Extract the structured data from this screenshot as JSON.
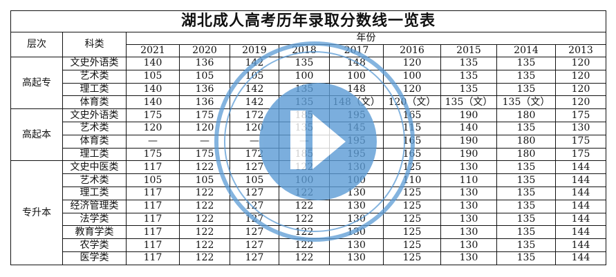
{
  "title": "湖北成人高考历年录取分数线一览表",
  "header": {
    "level": "层次",
    "category": "科类",
    "years_label": "年份"
  },
  "years": [
    "2021",
    "2020",
    "2019",
    "2018",
    "2017",
    "2016",
    "2015",
    "2014",
    "2013"
  ],
  "groups": [
    {
      "level": "高起专",
      "rows": [
        {
          "category": "文史外语类",
          "values": [
            "140",
            "136",
            "142",
            "135",
            "148",
            "120",
            "135",
            "135",
            "120"
          ]
        },
        {
          "category": "艺术类",
          "values": [
            "105",
            "105",
            "105",
            "100",
            "100",
            "100",
            "135",
            "135",
            "120"
          ]
        },
        {
          "category": "理工类",
          "values": [
            "140",
            "136",
            "142",
            "135",
            "148",
            "120",
            "135",
            "135",
            "120"
          ]
        },
        {
          "category": "体育类",
          "values": [
            "140",
            "136",
            "142",
            "135",
            "148（文）",
            "120（文）",
            "135（文）",
            "135（文）",
            "120"
          ]
        }
      ]
    },
    {
      "level": "高起本",
      "rows": [
        {
          "category": "文史外语类",
          "values": [
            "175",
            "175",
            "172",
            "185",
            "195",
            "165",
            "190",
            "180",
            "175"
          ]
        },
        {
          "category": "艺术类",
          "values": [
            "120",
            "120",
            "120",
            "135",
            "145",
            "115",
            "140",
            "135",
            "130"
          ]
        },
        {
          "category": "体育类",
          "values": [
            "—",
            "—",
            "—",
            "—",
            "195",
            "165",
            "190",
            "180",
            "175"
          ]
        },
        {
          "category": "理工类",
          "values": [
            "175",
            "175",
            "172",
            "185",
            "195",
            "165",
            "190",
            "180",
            "175"
          ]
        }
      ]
    },
    {
      "level": "专升本",
      "rows": [
        {
          "category": "文史中医类",
          "values": [
            "117",
            "122",
            "127",
            "122",
            "130",
            "125",
            "130",
            "135",
            "144"
          ]
        },
        {
          "category": "艺术类",
          "values": [
            "105",
            "105",
            "105",
            "100",
            "100",
            "110",
            "110",
            "135",
            "144"
          ]
        },
        {
          "category": "理工类",
          "values": [
            "117",
            "122",
            "127",
            "122",
            "130",
            "125",
            "130",
            "135",
            "144"
          ]
        },
        {
          "category": "经济管理类",
          "values": [
            "117",
            "122",
            "127",
            "122",
            "130",
            "125",
            "130",
            "135",
            "144"
          ]
        },
        {
          "category": "法学类",
          "values": [
            "117",
            "122",
            "127",
            "122",
            "130",
            "125",
            "130",
            "135",
            "144"
          ]
        },
        {
          "category": "教育学类",
          "values": [
            "117",
            "122",
            "127",
            "122",
            "130",
            "125",
            "130",
            "135",
            "144"
          ]
        },
        {
          "category": "农学类",
          "values": [
            "117",
            "122",
            "127",
            "122",
            "130",
            "125",
            "130",
            "135",
            "144"
          ]
        },
        {
          "category": "医学类",
          "values": [
            "117",
            "122",
            "127",
            "122",
            "130",
            "125",
            "130",
            "135",
            "144"
          ]
        }
      ]
    }
  ],
  "watermark": {
    "color": "#5b9bd5"
  }
}
